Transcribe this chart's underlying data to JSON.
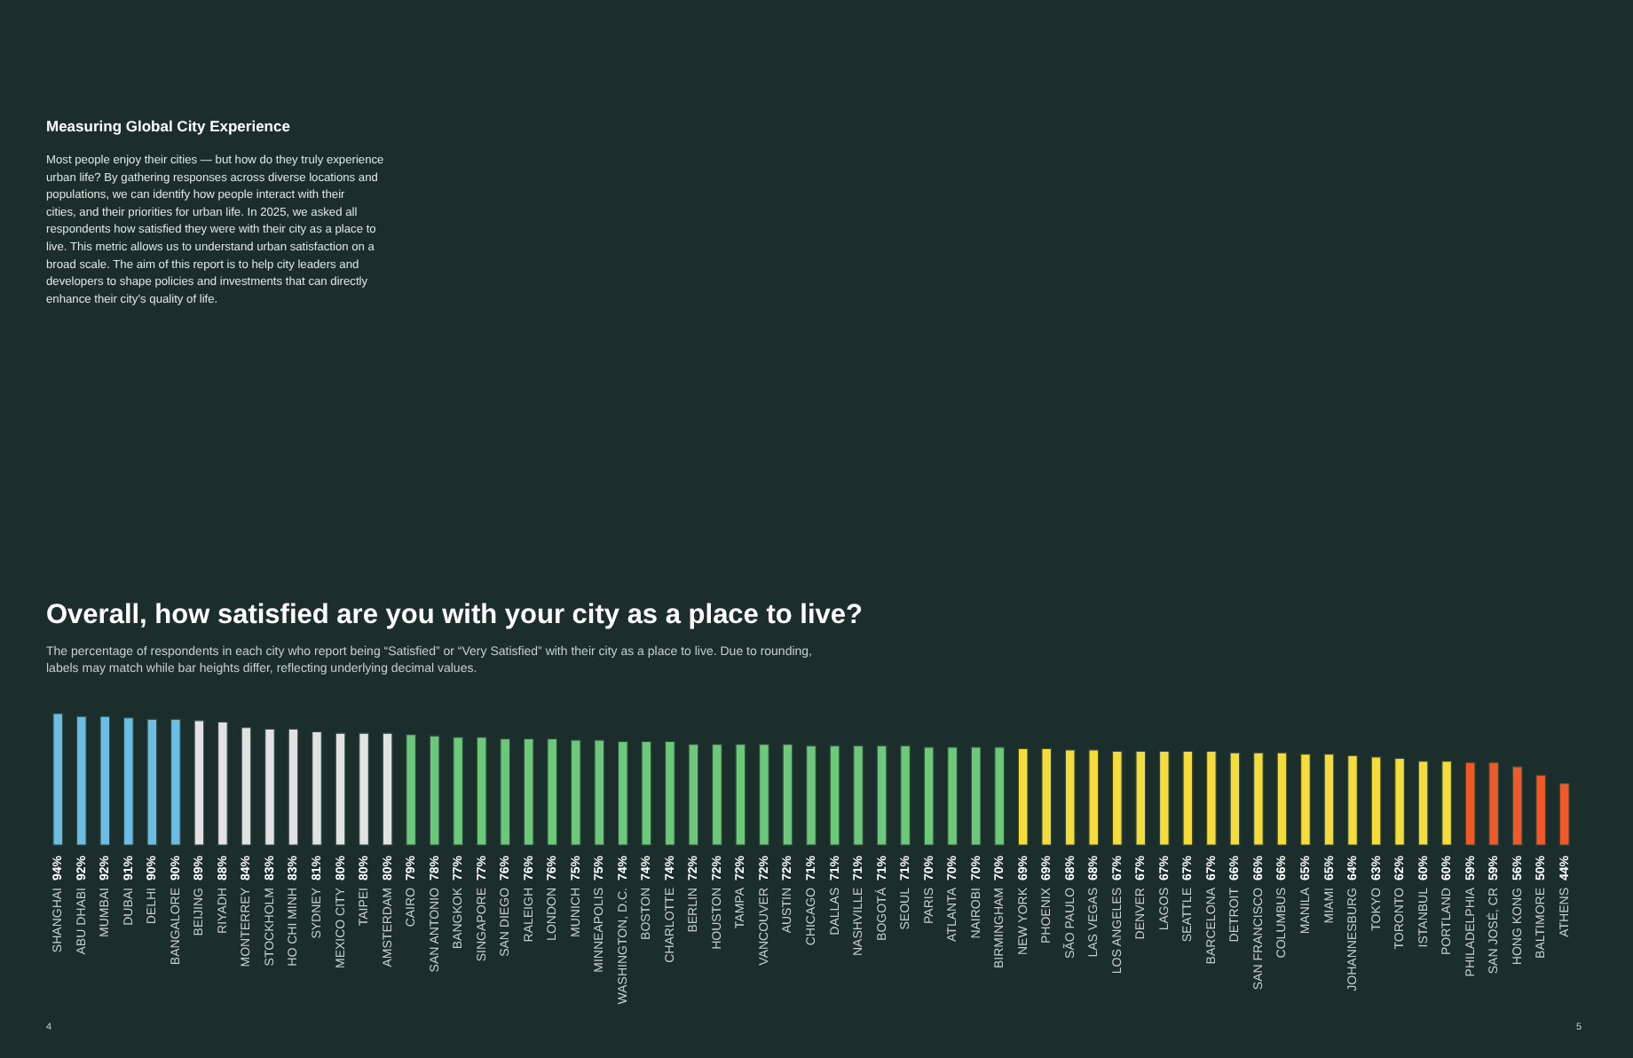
{
  "chart_data": {
    "type": "bar",
    "title": "Overall, how satisfied are you with your city as a place to live?",
    "subtitle": "The percentage of respondents in each city who report being “Satisfied” or “Very Satisfied” with their city as a place to live. Due to rounding, labels may match while bar heights differ, reflecting underlying decimal values.",
    "annotations": [
      "Measuring Global City Experience",
      "Most people enjoy their cities — but how do they truly experience urban life? By gathering responses across diverse locations and populations, we can identify how people interact with their cities, and their priorities for urban life. In 2025, we asked all respondents how satisfied they were with their city as a place to live. This metric allows us to understand urban satisfaction on a broad scale. The aim of this report is to help city leaders and developers to shape policies and investments that can directly enhance their city’s quality of life.",
      "4",
      "5"
    ],
    "categories": [
      "SHANGHAI",
      "ABU DHABI",
      "MUMBAI",
      "DUBAI",
      "DELHI",
      "BANGALORE",
      "BEIJING",
      "RIYADH",
      "MONTERREY",
      "STOCKHOLM",
      "HO CHI MINH",
      "SYDNEY",
      "MEXICO CITY",
      "TAIPEI",
      "AMSTERDAM",
      "CAIRO",
      "SAN ANTONIO",
      "BANGKOK",
      "SINGAPORE",
      "SAN DIEGO",
      "RALEIGH",
      "LONDON",
      "MUNICH",
      "MINNEAPOLIS",
      "WASHINGTON, D.C.",
      "BOSTON",
      "CHARLOTTE",
      "BERLIN",
      "HOUSTON",
      "TAMPA",
      "VANCOUVER",
      "AUSTIN",
      "CHICAGO",
      "DALLAS",
      "NASHVILLE",
      "BOGOTÁ",
      "SEOUL",
      "PARIS",
      "ATLANTA",
      "NAIROBI",
      "BIRMINGHAM",
      "NEW YORK",
      "PHOENIX",
      "SÃO PAULO",
      "LAS VEGAS",
      "LOS ANGELES",
      "DENVER",
      "LAGOS",
      "SEATTLE",
      "BARCELONA",
      "DETROIT",
      "SAN FRANCISCO",
      "COLUMBUS",
      "MANILA",
      "MIAMI",
      "JOHANNESBURG",
      "TOKYO",
      "TORONTO",
      "ISTANBUL",
      "PORTLAND",
      "PHILADELPHIA",
      "SAN JOSÉ, CR",
      "HONG KONG",
      "BALTIMORE",
      "ATHENS"
    ],
    "values": [
      94,
      92,
      92,
      91,
      90,
      90,
      89,
      88,
      84,
      83,
      83,
      81,
      80,
      80,
      80,
      79,
      78,
      77,
      77,
      76,
      76,
      76,
      75,
      75,
      74,
      74,
      74,
      72,
      72,
      72,
      72,
      72,
      71,
      71,
      71,
      71,
      71,
      70,
      70,
      70,
      70,
      69,
      69,
      68,
      68,
      67,
      67,
      67,
      67,
      67,
      66,
      66,
      66,
      65,
      65,
      64,
      63,
      62,
      60,
      60,
      59,
      59,
      56,
      50,
      44
    ],
    "value_labels": [
      "94%",
      "92%",
      "92%",
      "91%",
      "90%",
      "90%",
      "89%",
      "88%",
      "84%",
      "83%",
      "83%",
      "81%",
      "80%",
      "80%",
      "80%",
      "79%",
      "78%",
      "77%",
      "77%",
      "76%",
      "76%",
      "76%",
      "75%",
      "75%",
      "74%",
      "74%",
      "74%",
      "72%",
      "72%",
      "72%",
      "72%",
      "72%",
      "71%",
      "71%",
      "71%",
      "71%",
      "71%",
      "70%",
      "70%",
      "70%",
      "70%",
      "69%",
      "69%",
      "68%",
      "68%",
      "67%",
      "67%",
      "67%",
      "67%",
      "67%",
      "66%",
      "66%",
      "66%",
      "65%",
      "65%",
      "64%",
      "63%",
      "62%",
      "60%",
      "60%",
      "59%",
      "59%",
      "56%",
      "50%",
      "44%"
    ],
    "colors": [
      "#6bbde6",
      "#6bbde6",
      "#6bbde6",
      "#6bbde6",
      "#6bbde6",
      "#6bbde6",
      "#e2e2e2",
      "#e2e2e2",
      "#e2e2e2",
      "#e2e2e2",
      "#e2e2e2",
      "#e2e2e2",
      "#e2e2e2",
      "#e2e2e2",
      "#e2e2e2",
      "#6cc97a",
      "#6cc97a",
      "#6cc97a",
      "#6cc97a",
      "#6cc97a",
      "#6cc97a",
      "#6cc97a",
      "#6cc97a",
      "#6cc97a",
      "#6cc97a",
      "#6cc97a",
      "#6cc97a",
      "#6cc97a",
      "#6cc97a",
      "#6cc97a",
      "#6cc97a",
      "#6cc97a",
      "#6cc97a",
      "#6cc97a",
      "#6cc97a",
      "#6cc97a",
      "#6cc97a",
      "#6cc97a",
      "#6cc97a",
      "#6cc97a",
      "#6cc97a",
      "#f5dc3c",
      "#f5dc3c",
      "#f5dc3c",
      "#f5dc3c",
      "#f5dc3c",
      "#f5dc3c",
      "#f5dc3c",
      "#f5dc3c",
      "#f5dc3c",
      "#f5dc3c",
      "#f5dc3c",
      "#f5dc3c",
      "#f5dc3c",
      "#f5dc3c",
      "#f5dc3c",
      "#f5dc3c",
      "#f5dc3c",
      "#f5dc3c",
      "#f5dc3c",
      "#f05a28",
      "#f05a28",
      "#f05a28",
      "#f05a28",
      "#f05a28"
    ]
  }
}
